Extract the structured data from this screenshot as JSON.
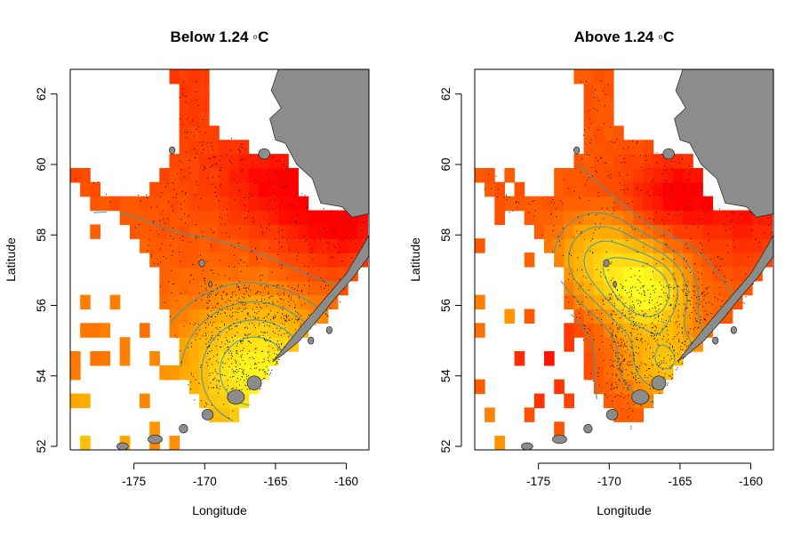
{
  "colors": {
    "heat_low": "#ffff20",
    "heat_mid": "#ffa500",
    "heat_high": "#ff0000",
    "land": "#8c8c8c",
    "contour": "#3a9aa8",
    "points": "#000000"
  },
  "chart_data": [
    {
      "type": "heatmap",
      "title": "Below 1.24 ◦C",
      "xlabel": "Longitude",
      "ylabel": "Latitude",
      "xlim": [
        -179.5,
        -158.4
      ],
      "ylim": [
        51.9,
        62.7
      ],
      "x_ticks": [
        -175,
        -170,
        -165,
        -160
      ],
      "x_tick_labels": [
        "-175",
        "-170",
        "-165",
        "-160"
      ],
      "y_ticks": [
        52,
        54,
        56,
        58,
        60,
        62
      ],
      "y_tick_labels": [
        "52",
        "54",
        "56",
        "58",
        "60",
        "62"
      ],
      "grid": false,
      "legend": "none",
      "overlays": [
        "contour lines",
        "sample points",
        "Alaska coastline"
      ],
      "field_peaks": [
        {
          "lon": -166.0,
          "lat": 54.5,
          "level": "low (yellow)"
        },
        {
          "lon": -160.0,
          "lat": 58.5,
          "level": "high (red)"
        }
      ]
    },
    {
      "type": "heatmap",
      "title": "Above 1.24 ◦C",
      "xlabel": "Longitude",
      "ylabel": "Latitude",
      "xlim": [
        -179.5,
        -158.4
      ],
      "ylim": [
        51.9,
        62.7
      ],
      "x_ticks": [
        -175,
        -170,
        -165,
        -160
      ],
      "x_tick_labels": [
        "-175",
        "-170",
        "-165",
        "-160"
      ],
      "y_ticks": [
        52,
        54,
        56,
        58,
        60,
        62
      ],
      "y_tick_labels": [
        "52",
        "54",
        "56",
        "58",
        "60",
        "62"
      ],
      "grid": false,
      "legend": "none",
      "overlays": [
        "contour lines",
        "sample points",
        "Alaska coastline"
      ],
      "field_peaks": [
        {
          "lon": -167.5,
          "lat": 56.4,
          "level": "low (pale yellow)"
        },
        {
          "lon": -164.5,
          "lat": 59.0,
          "level": "high (red)"
        }
      ]
    }
  ]
}
